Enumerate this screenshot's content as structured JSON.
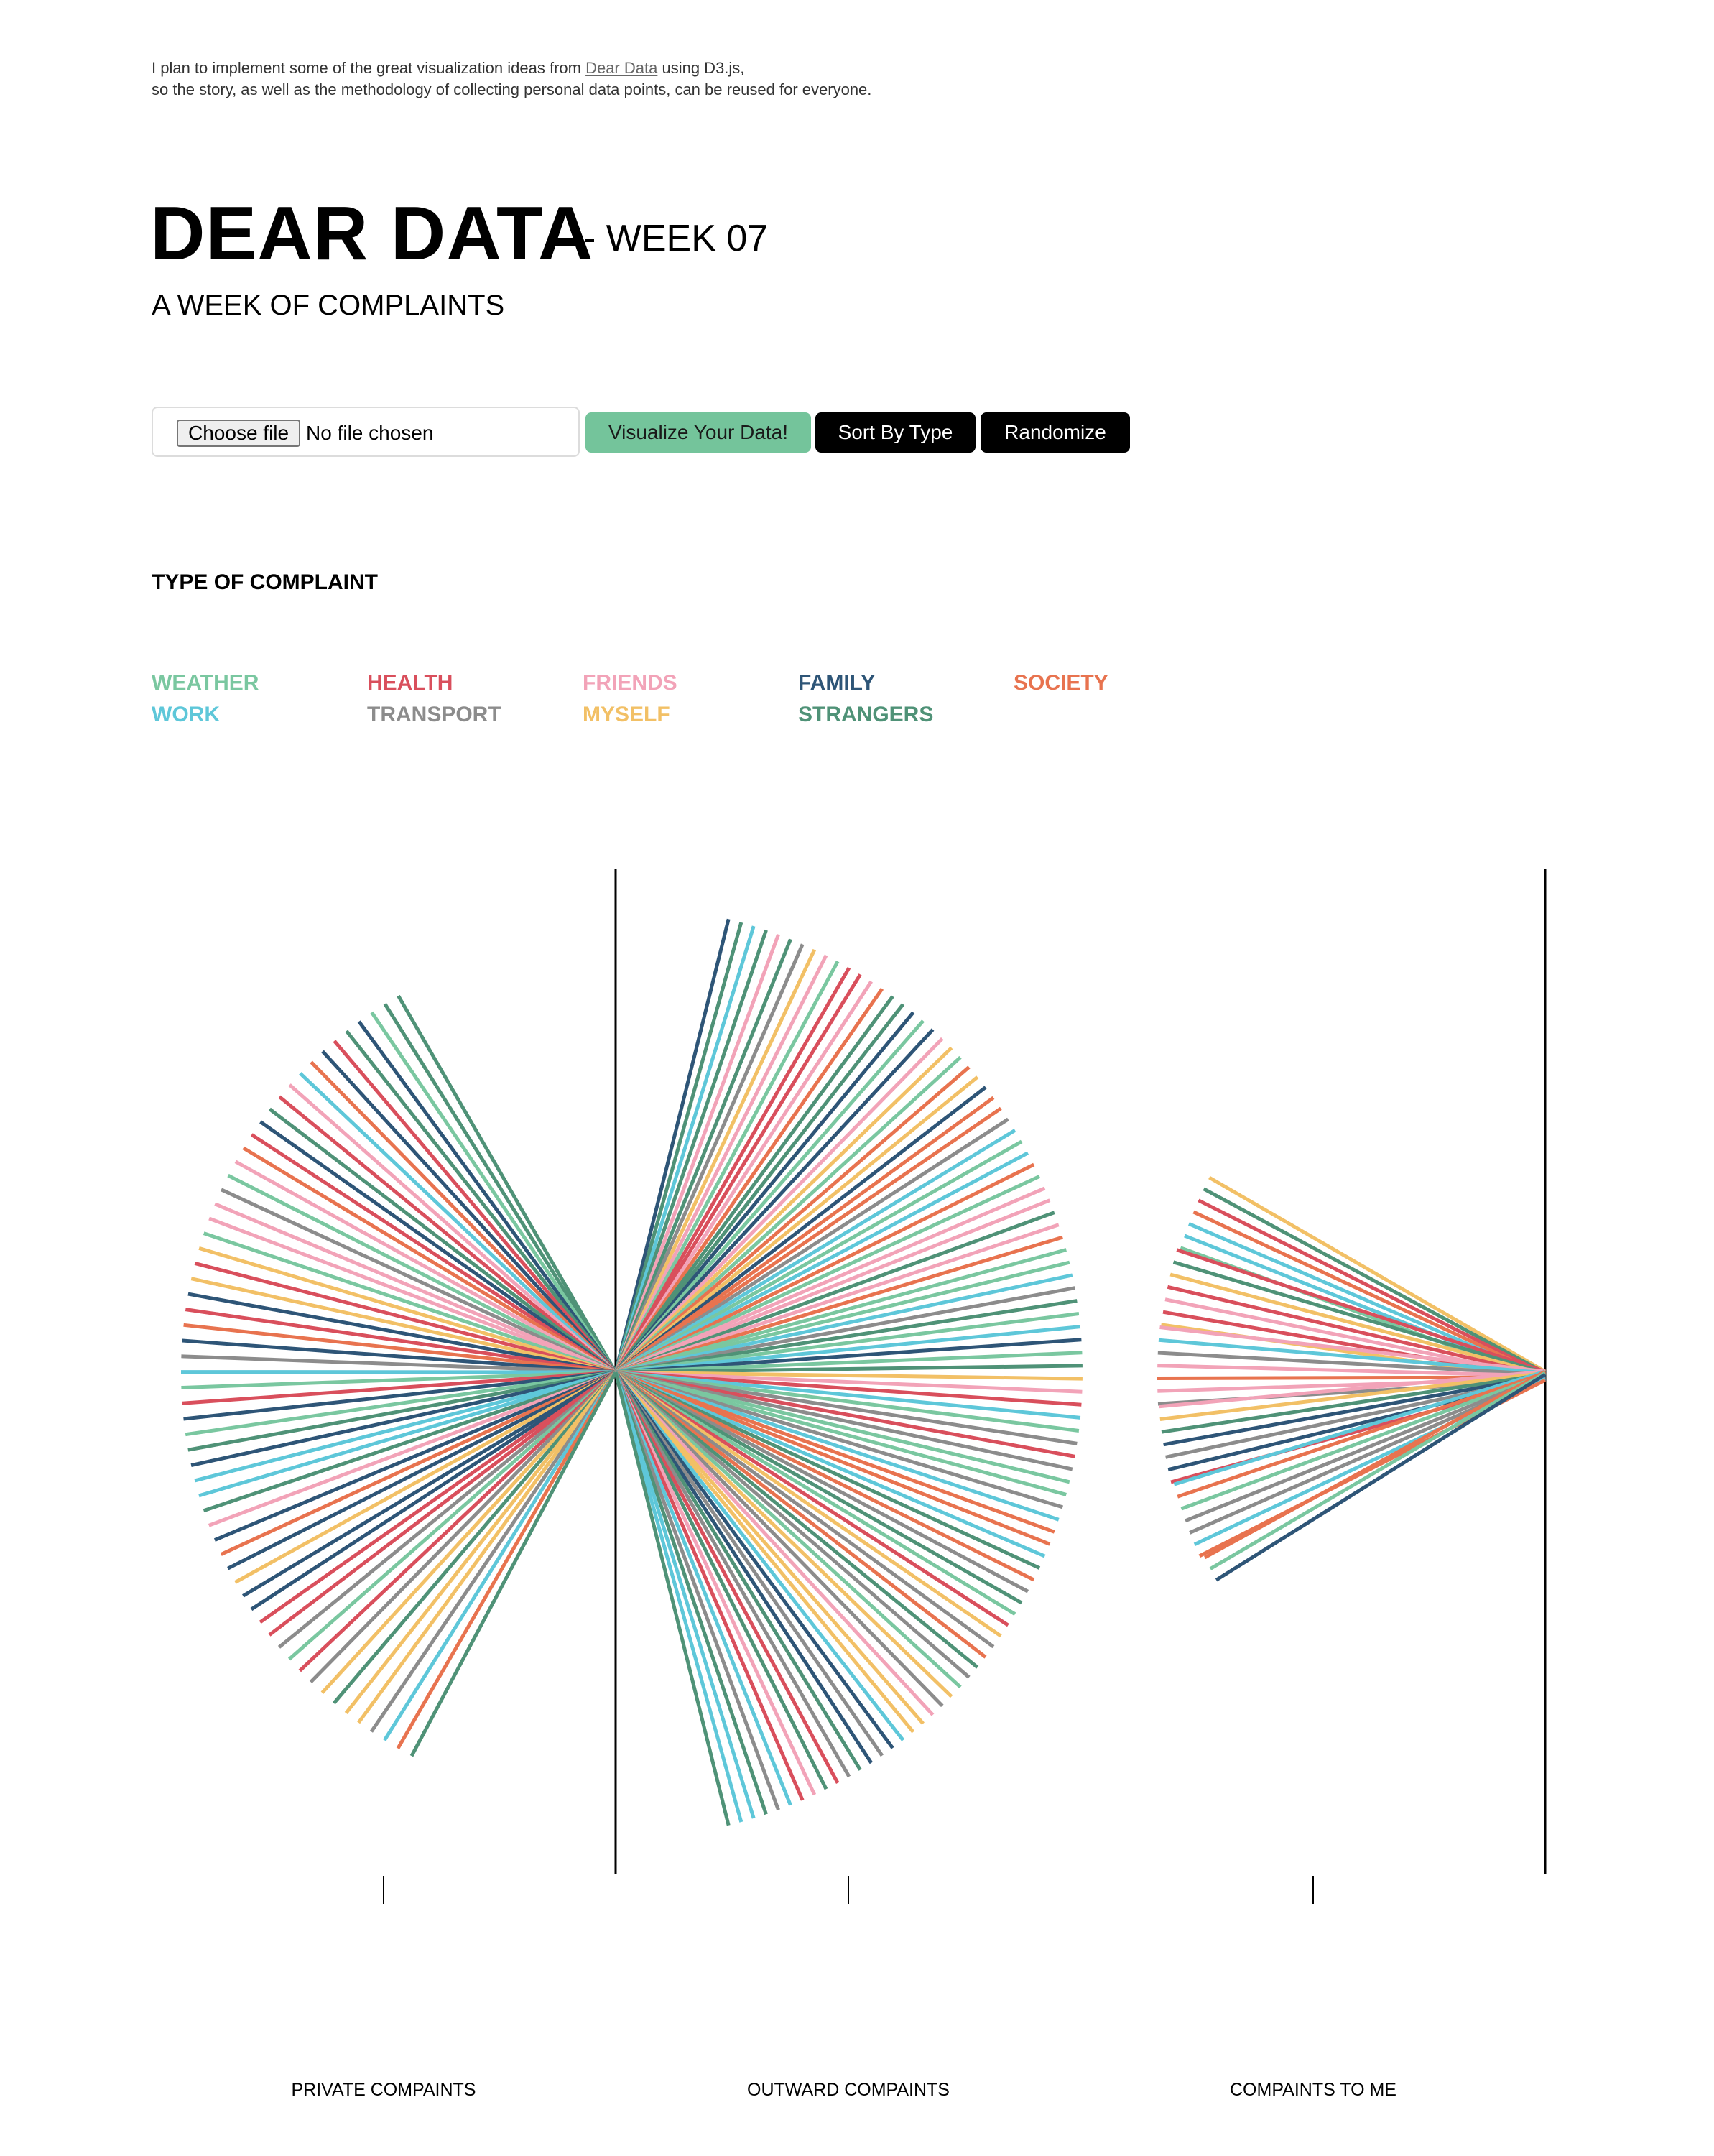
{
  "intro": {
    "line1_before": "I plan to implement some of the great visualization ideas from ",
    "link_text": "Dear Data",
    "line1_after": " using D3.js,",
    "line2": "so the story, as well as the methodology of collecting personal data points, can be reused for everyone."
  },
  "header": {
    "title": "DEAR DATA",
    "week": "- WEEK 07",
    "subtitle": "A WEEK OF COMPLAINTS"
  },
  "controls": {
    "choose_file": "Choose file",
    "no_file": "No file chosen",
    "visualize": "Visualize Your Data!",
    "sort": "Sort By Type",
    "randomize": "Randomize"
  },
  "legend": {
    "heading": "TYPE OF COMPLAINT",
    "items": [
      {
        "label": "WEATHER",
        "color": "#7ac7a0"
      },
      {
        "label": "HEALTH",
        "color": "#d94f5c"
      },
      {
        "label": "FRIENDS",
        "color": "#f2a3b8"
      },
      {
        "label": "FAMILY",
        "color": "#2e5577"
      },
      {
        "label": "SOCIETY",
        "color": "#e8734f"
      },
      {
        "label": "WORK",
        "color": "#5ec7d9"
      },
      {
        "label": "TRANSPORT",
        "color": "#8c8c8c"
      },
      {
        "label": "MYSELF",
        "color": "#f2c066"
      },
      {
        "label": "STRANGERS",
        "color": "#4f9277"
      }
    ]
  },
  "chart_data": {
    "type": "radial-lines",
    "groups": [
      {
        "name": "PRIVATE COMPAINTS",
        "count": 60
      },
      {
        "name": "OUTWARD COMPAINTS",
        "count": 96
      },
      {
        "name": "COMPAINTS TO ME",
        "count": 38
      }
    ],
    "category_order": [
      "WEATHER",
      "HEALTH",
      "FRIENDS",
      "FAMILY",
      "SOCIETY",
      "WORK",
      "TRANSPORT",
      "MYSELF",
      "STRANGERS"
    ]
  }
}
